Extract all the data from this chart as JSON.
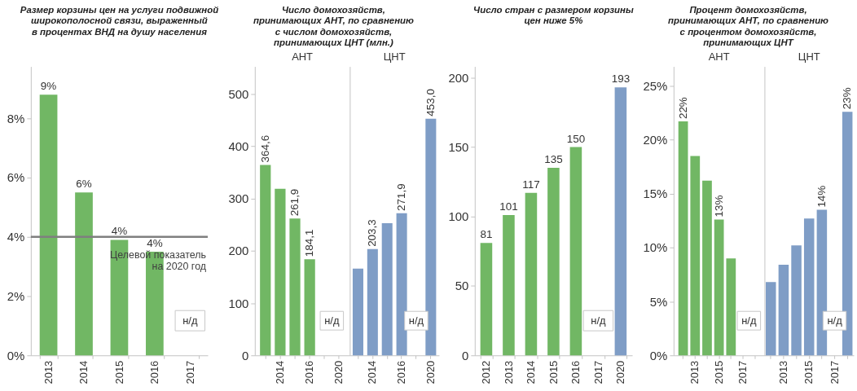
{
  "chart_data": [
    {
      "type": "bar",
      "title": "Размер корзины цен на услуги подвижной\nширокополосной связи, выраженный\nв процентах ВНД на душу населения",
      "categories": [
        "2013",
        "2014",
        "2015",
        "2016",
        "2017"
      ],
      "values": [
        8.8,
        5.5,
        3.9,
        3.5,
        null
      ],
      "value_labels": [
        "9%",
        "6%",
        "4%",
        "4%",
        null
      ],
      "color": "#71b764",
      "ylim": [
        0,
        9.75
      ],
      "yticks": [
        {
          "value": 0,
          "label": "0%"
        },
        {
          "value": 2,
          "label": "2%"
        },
        {
          "value": 4,
          "label": "4%"
        },
        {
          "value": 6,
          "label": "6%"
        },
        {
          "value": 8,
          "label": "8%"
        }
      ],
      "ref_lines": [
        {
          "axis": "y",
          "value": 4,
          "label": "Целевой показатель\nна 2020 год",
          "color": "#7f7f7f"
        }
      ],
      "annotations": [
        "н/д"
      ]
    },
    {
      "type": "bar",
      "title": "Число домохозяйств,\nпринимающих АНТ, по сравнению\nс числом домохозяйств,\nпринимающих ЦНТ (млн.)",
      "subtitle": "АНТ",
      "categories": [
        null,
        "2014",
        null,
        "2016",
        null,
        "2020"
      ],
      "values": [
        364.6,
        319,
        261.9,
        184.1,
        null,
        null
      ],
      "value_labels": [
        "364,6",
        null,
        "261,9",
        "184,1",
        null,
        null
      ],
      "color": "#71b764",
      "ylim": [
        0,
        553
      ],
      "yticks": [
        0,
        100,
        200,
        300,
        400,
        500
      ],
      "annotations": [
        "н/д"
      ]
    },
    {
      "type": "bar",
      "subtitle": "ЦНТ",
      "categories": [
        null,
        "2014",
        null,
        "2016",
        null,
        "2020"
      ],
      "values": [
        166,
        203.3,
        253,
        271.9,
        null,
        453.0
      ],
      "value_labels": [
        null,
        "203,3",
        null,
        "271,9",
        null,
        "453,0"
      ],
      "color": "#7f9dc6",
      "ylim": [
        0,
        553
      ],
      "tick_labels": "x",
      "annotations": [
        "н/д"
      ]
    },
    {
      "type": "bar",
      "title": "Число стран с размером корзины\nцен ниже 5%",
      "categories": [
        "2012",
        "2013",
        "2014",
        "2015",
        "2016",
        "2017",
        "2020"
      ],
      "values": [
        81,
        101,
        117,
        135,
        150,
        null,
        193
      ],
      "colors": [
        "#71b764",
        "#71b764",
        "#71b764",
        "#71b764",
        "#71b764",
        "#71b764",
        "#7f9dc6"
      ],
      "data_labels": true,
      "ylim": [
        0,
        208
      ],
      "yticks": [
        0,
        50,
        100,
        150,
        200
      ],
      "annotations": [
        "н/д"
      ]
    },
    {
      "type": "bar",
      "title": "Процент домохозяйств,\nпринимающих АНТ, по сравнению\nс процентом домохозяйств,\nпринимающих ЦНТ",
      "subtitle": "АНТ",
      "categories": [
        null,
        "2013",
        null,
        "2015",
        null,
        "2017",
        null
      ],
      "values": [
        21.7,
        18.5,
        16.2,
        12.6,
        9.0,
        null,
        null
      ],
      "value_labels": [
        "22%",
        null,
        null,
        "13%",
        null,
        null,
        null
      ],
      "color": "#71b764",
      "ylim": [
        0,
        26.8
      ],
      "yticks": [
        {
          "value": 0,
          "label": "0%"
        },
        {
          "value": 5,
          "label": "5%"
        },
        {
          "value": 10,
          "label": "10%"
        },
        {
          "value": 15,
          "label": "15%"
        },
        {
          "value": 20,
          "label": "20%"
        },
        {
          "value": 25,
          "label": "25%"
        }
      ],
      "annotations": [
        "н/д"
      ]
    },
    {
      "type": "bar",
      "subtitle": "ЦНТ",
      "categories": [
        null,
        "2013",
        null,
        "2015",
        null,
        "2017",
        null
      ],
      "values": [
        6.8,
        8.4,
        10.2,
        12.7,
        13.5,
        null,
        22.6
      ],
      "value_labels": [
        null,
        null,
        null,
        null,
        "14%",
        null,
        "23%"
      ],
      "color": "#7f9dc6",
      "ylim": [
        0,
        26.8
      ],
      "tick_labels": "x",
      "annotations": [
        "н/д"
      ]
    }
  ]
}
